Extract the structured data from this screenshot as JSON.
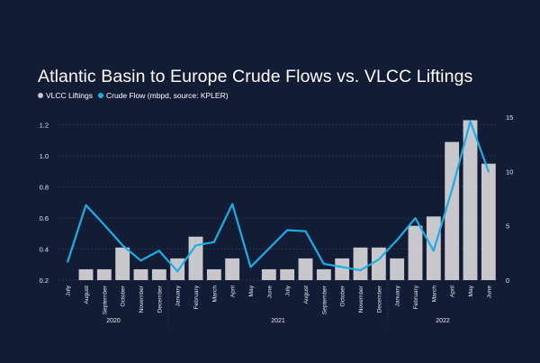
{
  "colors": {
    "background": "#131c35",
    "bar": "#c8c8cc",
    "line": "#1aaee8",
    "grid": "#3a4560",
    "text": "#ffffff",
    "tick": "#e8e8ee"
  },
  "chart_data": {
    "type": "bar",
    "title": "Atlantic Basin to Europe Crude Flows vs. VLCC Liftings",
    "categories": [
      "July",
      "August",
      "September",
      "October",
      "November",
      "December",
      "January",
      "February",
      "March",
      "April",
      "May",
      "June",
      "July",
      "August",
      "September",
      "October",
      "November",
      "December",
      "January",
      "February",
      "March",
      "April",
      "May",
      "June"
    ],
    "year_groups": [
      {
        "label": "2020",
        "start": 0,
        "end": 5
      },
      {
        "label": "2021",
        "start": 6,
        "end": 17
      },
      {
        "label": "2022",
        "start": 18,
        "end": 23
      }
    ],
    "series": [
      {
        "name": "VLCC Liftings",
        "type": "bar",
        "axis": "left",
        "values": [
          null,
          0.27,
          0.27,
          0.41,
          0.27,
          0.27,
          0.34,
          0.48,
          0.27,
          0.34,
          null,
          0.27,
          0.27,
          0.34,
          0.27,
          0.34,
          0.41,
          0.41,
          0.34,
          0.55,
          0.61,
          1.09,
          1.23,
          0.95
        ]
      },
      {
        "name": "Crude Flow (mbpd, source: KPLER)",
        "type": "line",
        "axis": "right",
        "values": [
          1.7,
          6.9,
          5.1,
          3.2,
          1.8,
          2.7,
          0.8,
          3.2,
          3.5,
          7.0,
          1.2,
          2.9,
          4.6,
          4.5,
          1.5,
          1.2,
          0.9,
          1.9,
          3.7,
          5.7,
          2.7,
          8.3,
          14.6,
          10.0
        ]
      }
    ],
    "left_axis": {
      "ylim": [
        0.2,
        1.25
      ],
      "ticks": [
        "0.2",
        "0.4",
        "0.6",
        "0.8",
        "1.0",
        "1.2"
      ]
    },
    "right_axis": {
      "ylim": [
        0,
        15
      ],
      "ticks": [
        "0",
        "5",
        "10",
        "15"
      ]
    },
    "grid": true,
    "legend_position": "top-left"
  }
}
